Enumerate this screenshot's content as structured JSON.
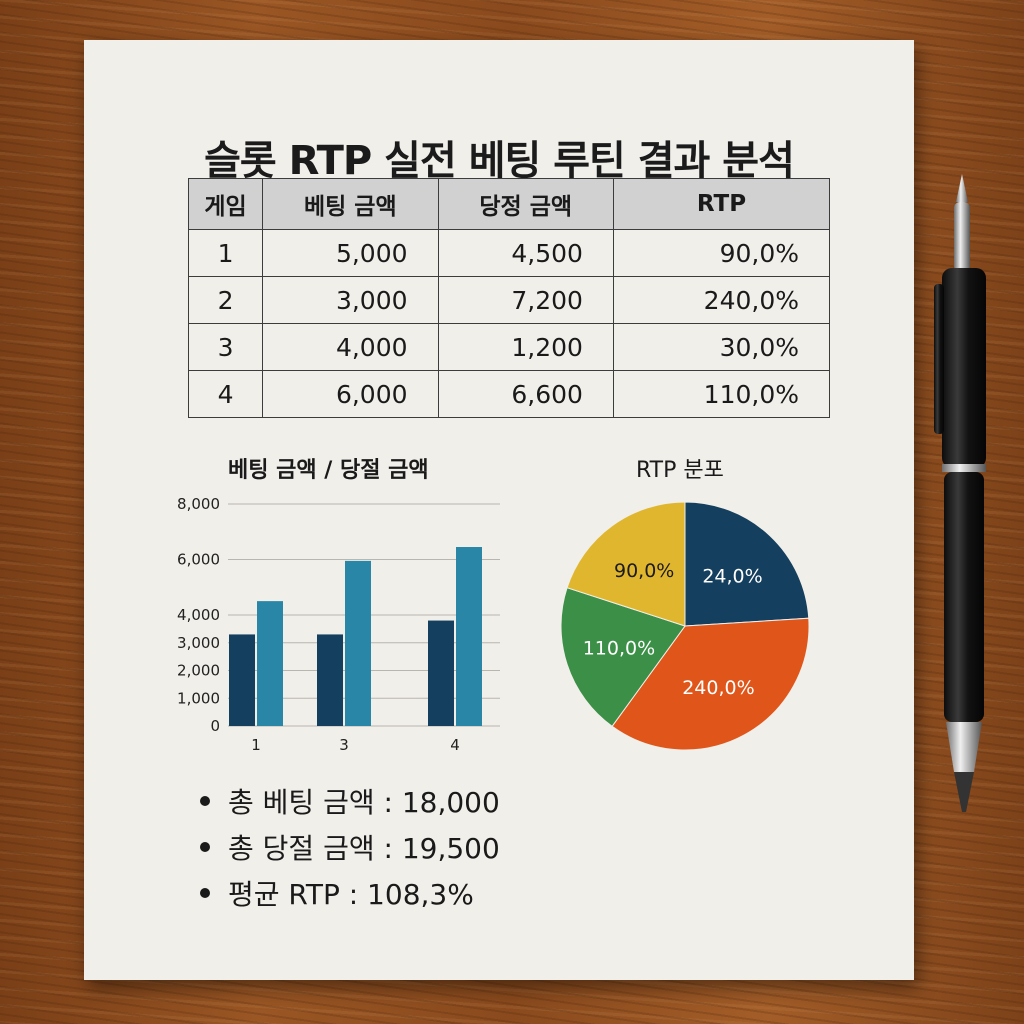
{
  "title": "슬롯 RTP 실전 베팅 루틴 결과 분석",
  "table": {
    "headers": [
      "게임",
      "베팅 금액",
      "당정 금액",
      "RTP"
    ],
    "rows": [
      [
        "1",
        "5,000",
        "4,500",
        "90,0%"
      ],
      [
        "2",
        "3,000",
        "7,200",
        "240,0%"
      ],
      [
        "3",
        "4,000",
        "1,200",
        "30,0%"
      ],
      [
        "4",
        "6,000",
        "6,600",
        "110,0%"
      ]
    ]
  },
  "summary": [
    "총 베팅 금액 : 18,000",
    "총 당절 금액 : 19,500",
    "평균 RTP : 108,3%"
  ],
  "chart_data": [
    {
      "type": "bar",
      "title": "베팅 금액 / 당절 금액",
      "categories": [
        "1",
        "3",
        "4"
      ],
      "series": [
        {
          "values": [
            3300,
            3300,
            3800
          ],
          "color": "#143f5e"
        },
        {
          "values": [
            4500,
            5950,
            6450
          ],
          "color": "#2a86a6"
        }
      ],
      "yticks": [
        0,
        1000,
        2000,
        3000,
        4000,
        6000,
        8000
      ],
      "ytick_labels": [
        "0",
        "1,000",
        "2,000",
        "3,000",
        "4,000",
        "6,000",
        "8,000"
      ],
      "ylim": [
        0,
        8000
      ],
      "grid": true
    },
    {
      "type": "pie",
      "title": "RTP 분포",
      "slices": [
        {
          "label": "24,0%",
          "value": 24,
          "color": "#143f5e"
        },
        {
          "label": "240,0%",
          "value": 36,
          "color": "#e0561a"
        },
        {
          "label": "110,0%",
          "value": 20,
          "color": "#3b8f47"
        },
        {
          "label": "90,0%",
          "value": 20,
          "color": "#e1b62f"
        }
      ]
    }
  ]
}
